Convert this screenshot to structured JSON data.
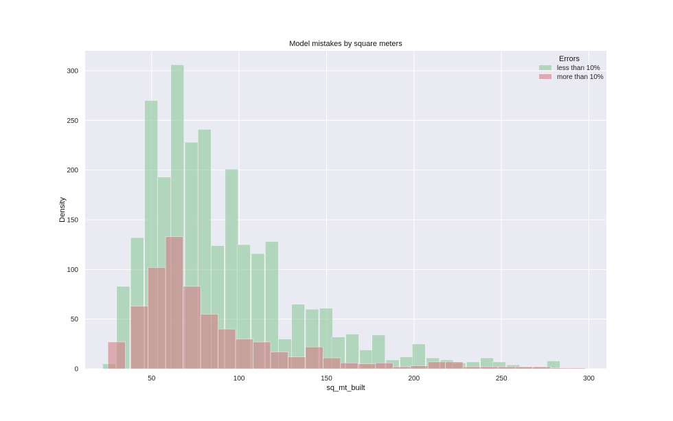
{
  "chart_data": {
    "type": "bar",
    "title": "Model mistakes by square meters",
    "xlabel": "sq_mt_built",
    "ylabel": "Density",
    "xlim": [
      12,
      310
    ],
    "ylim": [
      0,
      320
    ],
    "xticks": [
      50,
      100,
      150,
      200,
      250,
      300
    ],
    "yticks": [
      0,
      50,
      100,
      150,
      200,
      250,
      300
    ],
    "grid": true,
    "legend": {
      "title": "Errors",
      "placement": "top-right"
    },
    "series": [
      {
        "name": "less than 10%",
        "color": "#93c9a2",
        "bins": [
          [
            22,
            5
          ],
          [
            26.5,
            0
          ],
          [
            30,
            83
          ],
          [
            38,
            132
          ],
          [
            46,
            270
          ],
          [
            53.5,
            193
          ],
          [
            61,
            306
          ],
          [
            69,
            228
          ],
          [
            76.5,
            241
          ],
          [
            84,
            124
          ],
          [
            92,
            201
          ],
          [
            99,
            125
          ],
          [
            107,
            116
          ],
          [
            115,
            128
          ],
          [
            122.5,
            30
          ],
          [
            130,
            65
          ],
          [
            138,
            60
          ],
          [
            146,
            61
          ],
          [
            153,
            32
          ],
          [
            161,
            35
          ],
          [
            169,
            19
          ],
          [
            176,
            34
          ],
          [
            184,
            9
          ],
          [
            192,
            12
          ],
          [
            199,
            25
          ],
          [
            207,
            11
          ],
          [
            215,
            9
          ],
          [
            222,
            6
          ],
          [
            230,
            7
          ],
          [
            238,
            11
          ],
          [
            245,
            7
          ],
          [
            253,
            4
          ],
          [
            260,
            2
          ],
          [
            268,
            2
          ],
          [
            276,
            8
          ],
          [
            283,
            0
          ]
        ],
        "bin_width": 7.5
      },
      {
        "name": "more than 10%",
        "color": "#d47f86",
        "bins": [
          [
            25,
            27
          ],
          [
            33.5,
            0
          ],
          [
            38,
            63
          ],
          [
            48,
            102
          ],
          [
            58,
            133
          ],
          [
            68,
            83
          ],
          [
            78,
            55
          ],
          [
            88,
            40
          ],
          [
            98,
            30
          ],
          [
            108,
            27
          ],
          [
            118,
            17
          ],
          [
            128,
            12
          ],
          [
            138,
            22
          ],
          [
            148,
            11
          ],
          [
            158,
            6
          ],
          [
            168,
            5
          ],
          [
            178,
            6
          ],
          [
            188,
            2
          ],
          [
            198,
            3
          ],
          [
            208,
            7
          ],
          [
            218,
            7
          ],
          [
            228,
            2
          ],
          [
            238,
            2
          ],
          [
            248,
            2
          ],
          [
            258,
            2
          ],
          [
            268,
            2
          ],
          [
            278,
            1
          ],
          [
            288,
            1
          ]
        ],
        "bin_width": 10
      }
    ]
  }
}
